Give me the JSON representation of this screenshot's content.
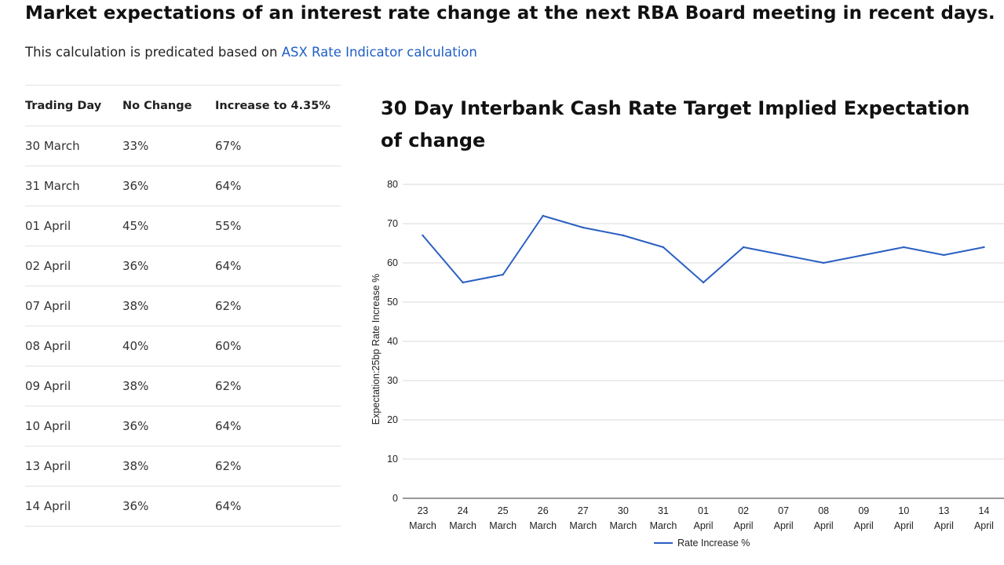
{
  "page": {
    "title": "Market expectations of an interest rate change at the next RBA Board meeting in recent days.",
    "intro_text": "This calculation is predicated based on ",
    "intro_link": "ASX Rate Indicator calculation"
  },
  "table": {
    "headers": [
      "Trading Day",
      "No Change",
      "Increase to 4.35%"
    ],
    "rows": [
      [
        "30 March",
        "33%",
        "67%"
      ],
      [
        "31 March",
        "36%",
        "64%"
      ],
      [
        "01 April",
        "45%",
        "55%"
      ],
      [
        "02 April",
        "36%",
        "64%"
      ],
      [
        "07 April",
        "38%",
        "62%"
      ],
      [
        "08 April",
        "40%",
        "60%"
      ],
      [
        "09 April",
        "38%",
        "62%"
      ],
      [
        "10 April",
        "36%",
        "64%"
      ],
      [
        "13 April",
        "38%",
        "62%"
      ],
      [
        "14 April",
        "36%",
        "64%"
      ]
    ]
  },
  "chart_data": {
    "type": "line",
    "title": "30 Day Interbank Cash Rate Target Implied Expectation of change",
    "xlabel": "",
    "ylabel": "Expectation:25bp Rate Increase %",
    "categories": [
      "23 March",
      "24 March",
      "25 March",
      "26 March",
      "27 March",
      "30 March",
      "31 March",
      "01 April",
      "02 April",
      "07 April",
      "08 April",
      "09 April",
      "10 April",
      "13 April",
      "14 April"
    ],
    "series": [
      {
        "name": "Rate Increase %",
        "color": "#2a5fc1",
        "values": [
          67,
          55,
          57,
          72,
          69,
          67,
          64,
          55,
          64,
          62,
          60,
          62,
          64,
          62,
          64
        ]
      }
    ],
    "ylim": [
      0,
      80
    ],
    "yticks": [
      0,
      10,
      20,
      30,
      40,
      50,
      60,
      70,
      80
    ],
    "grid": true,
    "legend": "bottom-center"
  }
}
